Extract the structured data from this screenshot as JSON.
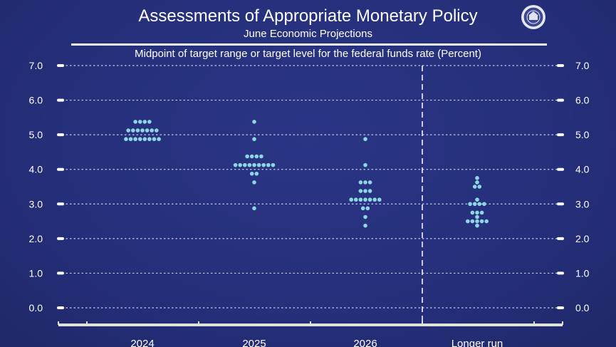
{
  "header": {
    "title": "Assessments of Appropriate Monetary Policy",
    "subtitle": "June Economic Projections",
    "seal_text": "Federal Reserve"
  },
  "colors": {
    "background": "#252f7a",
    "dot": "#8ed6e4",
    "text": "#ffffff"
  },
  "chart_data": {
    "type": "scatter",
    "title": "Assessments of Appropriate Monetary Policy",
    "subtitle": "June Economic Projections",
    "ylabel": "Midpoint of target range or target level for the federal funds rate (Percent)",
    "xlabel": "",
    "ylim": [
      0,
      7
    ],
    "yticks": [
      "0.0",
      "1.0",
      "2.0",
      "3.0",
      "4.0",
      "5.0",
      "6.0",
      "7.0"
    ],
    "grid": true,
    "categories": [
      "2024",
      "2025",
      "2026",
      "Longer run"
    ],
    "series": [
      {
        "name": "2024",
        "points": [
          {
            "y": 5.375,
            "count": 4
          },
          {
            "y": 5.125,
            "count": 7
          },
          {
            "y": 4.875,
            "count": 8
          }
        ]
      },
      {
        "name": "2025",
        "points": [
          {
            "y": 5.375,
            "count": 1
          },
          {
            "y": 4.875,
            "count": 1
          },
          {
            "y": 4.375,
            "count": 4
          },
          {
            "y": 4.125,
            "count": 9
          },
          {
            "y": 3.875,
            "count": 2
          },
          {
            "y": 3.625,
            "count": 1
          },
          {
            "y": 2.875,
            "count": 1
          }
        ]
      },
      {
        "name": "2026",
        "points": [
          {
            "y": 4.875,
            "count": 1
          },
          {
            "y": 4.125,
            "count": 1
          },
          {
            "y": 3.625,
            "count": 3
          },
          {
            "y": 3.375,
            "count": 3
          },
          {
            "y": 3.125,
            "count": 7
          },
          {
            "y": 2.875,
            "count": 2
          },
          {
            "y": 2.625,
            "count": 1
          },
          {
            "y": 2.375,
            "count": 1
          }
        ]
      },
      {
        "name": "Longer run",
        "points": [
          {
            "y": 3.75,
            "count": 1
          },
          {
            "y": 3.625,
            "count": 1
          },
          {
            "y": 3.5,
            "count": 2
          },
          {
            "y": 3.125,
            "count": 1
          },
          {
            "y": 3.0,
            "count": 4
          },
          {
            "y": 2.75,
            "count": 3
          },
          {
            "y": 2.625,
            "count": 1
          },
          {
            "y": 2.5,
            "count": 5
          },
          {
            "y": 2.375,
            "count": 1
          }
        ]
      }
    ]
  }
}
